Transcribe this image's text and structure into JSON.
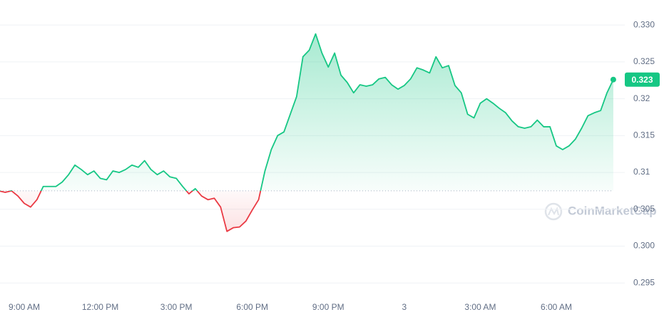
{
  "chart_data": {
    "type": "line",
    "categories": [
      null,
      null,
      null,
      null,
      "9:00 AM",
      null,
      null,
      null,
      null,
      null,
      null,
      null,
      null,
      null,
      null,
      null,
      "12:00 PM",
      null,
      null,
      null,
      null,
      null,
      null,
      null,
      null,
      null,
      null,
      null,
      "3:00 PM",
      null,
      null,
      null,
      null,
      null,
      null,
      null,
      null,
      null,
      null,
      null,
      "6:00 PM",
      null,
      null,
      null,
      null,
      null,
      null,
      null,
      null,
      null,
      null,
      null,
      "9:00 PM",
      null,
      null,
      null,
      null,
      null,
      null,
      null,
      null,
      null,
      null,
      null,
      "3",
      null,
      null,
      null,
      null,
      null,
      null,
      null,
      null,
      null,
      null,
      null,
      "3:00 AM",
      null,
      null,
      null,
      null,
      null,
      null,
      null,
      null,
      null,
      null,
      null,
      "6:00 AM",
      null,
      null,
      null,
      null,
      null,
      null,
      null,
      null,
      null
    ],
    "series": [
      {
        "color": "#16c784",
        "below_color": "#ea3943",
        "values": [
          0.3075,
          0.3073,
          0.3075,
          0.3068,
          0.3058,
          0.3053,
          0.3063,
          0.3081,
          0.3081,
          0.3081,
          0.3087,
          0.3097,
          0.311,
          0.3104,
          0.3097,
          0.3102,
          0.3092,
          0.309,
          0.3102,
          0.31,
          0.3104,
          0.311,
          0.3107,
          0.3116,
          0.3104,
          0.3097,
          0.3102,
          0.3094,
          0.3092,
          0.3081,
          0.3071,
          0.3078,
          0.3068,
          0.3063,
          0.3065,
          0.3053,
          0.302,
          0.3025,
          0.3026,
          0.3034,
          0.3049,
          0.3063,
          0.3102,
          0.3131,
          0.315,
          0.3155,
          0.3179,
          0.3203,
          0.3257,
          0.3266,
          0.3288,
          0.3262,
          0.3243,
          0.3262,
          0.3232,
          0.3222,
          0.3208,
          0.3219,
          0.3217,
          0.3219,
          0.3227,
          0.3229,
          0.3219,
          0.3213,
          0.3218,
          0.3227,
          0.3242,
          0.3239,
          0.3235,
          0.3257,
          0.3242,
          0.3245,
          0.3218,
          0.3208,
          0.3179,
          0.3174,
          0.3194,
          0.32,
          0.3194,
          0.3187,
          0.3181,
          0.317,
          0.3162,
          0.316,
          0.3162,
          0.3171,
          0.3162,
          0.3162,
          0.3136,
          0.3131,
          0.3136,
          0.3145,
          0.316,
          0.3177,
          0.3181,
          0.3184,
          0.3208,
          0.3226
        ],
        "value_labels": [
          null,
          null,
          null,
          null,
          null,
          null,
          null,
          null,
          null,
          null,
          null,
          null,
          null,
          null,
          null,
          null,
          null,
          null,
          null,
          null,
          null,
          null,
          null,
          null,
          null,
          null,
          null,
          null,
          null,
          null,
          null,
          null,
          null,
          null,
          null,
          null,
          null,
          null,
          null,
          null,
          null,
          null,
          null,
          null,
          null,
          null,
          null,
          null,
          null,
          null,
          null,
          null,
          null,
          null,
          null,
          null,
          null,
          null,
          null,
          null,
          null,
          null,
          null,
          null,
          null,
          null,
          null,
          null,
          null,
          null,
          null,
          null,
          null,
          null,
          null,
          null,
          null,
          null,
          null,
          null,
          null,
          null,
          null,
          null,
          null,
          null,
          null,
          null,
          null,
          null,
          null,
          null,
          null,
          null,
          null,
          null,
          null,
          "0.323"
        ]
      }
    ],
    "baseline": 0.3075,
    "ylim": [
      0.2928,
      0.3334
    ],
    "yticks": [
      0.295,
      {
        "value": 0.3,
        "label": "0.300"
      },
      0.305,
      0.31,
      0.315,
      0.32,
      0.325,
      {
        "value": 0.33,
        "label": "0.330"
      }
    ],
    "grid": true,
    "watermark": "CoinMarketCap"
  }
}
